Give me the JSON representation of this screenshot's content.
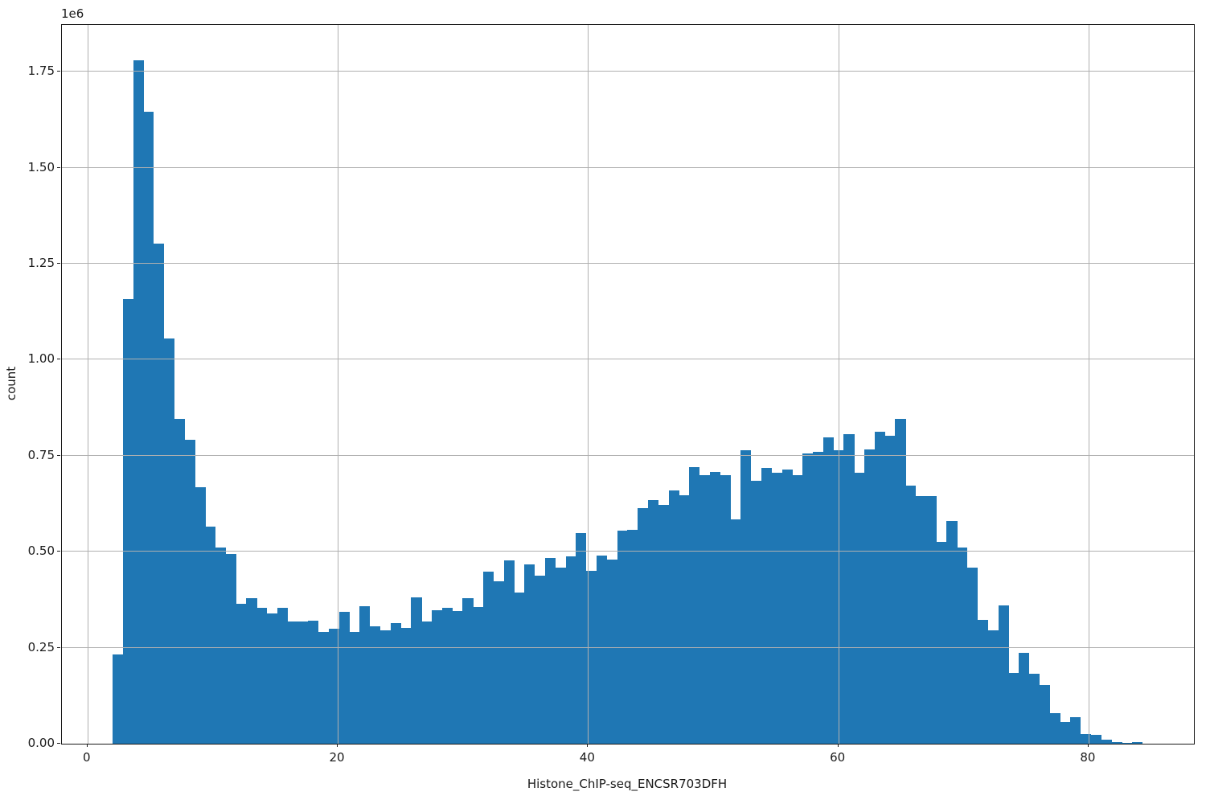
{
  "chart_data": {
    "type": "bar",
    "subtype": "histogram",
    "title": "",
    "xlabel": "Histone_ChIP-seq_ENCSR703DFH",
    "ylabel": "count",
    "offset_text": "1e6",
    "bar_color": "#1f77b4",
    "grid_color": "#b0b0b0",
    "spine_color": "#1a1a1a",
    "grid": "on",
    "legend": "none",
    "xlim": [
      -2.04,
      88.42
    ],
    "ylim_1e6": [
      0,
      1.872
    ],
    "x_ticks": [
      0,
      20,
      40,
      60,
      80
    ],
    "y_ticks_1e6": [
      0.0,
      0.25,
      0.5,
      0.75,
      1.0,
      1.25,
      1.5,
      1.75
    ],
    "y_tick_labels": [
      "0.00",
      "0.25",
      "0.50",
      "0.75",
      "1.00",
      "1.25",
      "1.50",
      "1.75"
    ],
    "bin_start": 2.0,
    "bin_width": 0.823,
    "counts_1e6": [
      0.233,
      1.158,
      1.779,
      1.645,
      1.303,
      1.056,
      0.846,
      0.792,
      0.667,
      0.566,
      0.511,
      0.494,
      0.365,
      0.379,
      0.353,
      0.34,
      0.353,
      0.319,
      0.319,
      0.321,
      0.291,
      0.3,
      0.344,
      0.291,
      0.358,
      0.306,
      0.295,
      0.314,
      0.302,
      0.381,
      0.318,
      0.347,
      0.353,
      0.346,
      0.379,
      0.356,
      0.449,
      0.423,
      0.478,
      0.393,
      0.468,
      0.437,
      0.483,
      0.458,
      0.487,
      0.548,
      0.451,
      0.491,
      0.48,
      0.555,
      0.558,
      0.613,
      0.635,
      0.621,
      0.659,
      0.647,
      0.72,
      0.7,
      0.707,
      0.7,
      0.585,
      0.765,
      0.684,
      0.718,
      0.705,
      0.714,
      0.7,
      0.755,
      0.761,
      0.797,
      0.764,
      0.807,
      0.705,
      0.767,
      0.812,
      0.801,
      0.847,
      0.673,
      0.645,
      0.645,
      0.525,
      0.58,
      0.512,
      0.459,
      0.323,
      0.295,
      0.361,
      0.185,
      0.236,
      0.182,
      0.152,
      0.08,
      0.056,
      0.069,
      0.026,
      0.023,
      0.01,
      0.005,
      0.003,
      0.005
    ]
  }
}
